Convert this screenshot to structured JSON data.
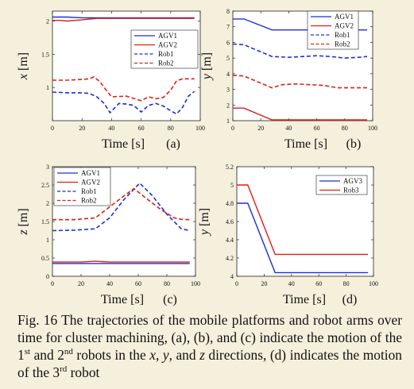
{
  "colors": {
    "blue": "#1a2fd6",
    "red": "#e01e12",
    "background": "#f5f0dc"
  },
  "caption": {
    "prefix": "Fig. 16 The trajectories of the mobile platforms and robot arms over time for cluster machining, (a), (b), and (c) indicate the motion of the 1",
    "sup1": "st",
    "mid1": " and 2",
    "sup2": "nd",
    "mid2": " robots in the ",
    "var_x": "x",
    "sep1": ", ",
    "var_y": "y",
    "sep2": ", and ",
    "var_z": "z",
    "mid3": " directions, (d) indicates the motion of the 3",
    "sup3": "rd",
    "suffix": " robot"
  },
  "chart_data": [
    {
      "panel": "(a)",
      "type": "line",
      "xlabel": "Time [s]",
      "ylabel": "x [m]",
      "xlim": [
        0,
        100
      ],
      "ylim": [
        0.5,
        2.15
      ],
      "xticks": [
        0,
        20,
        40,
        60,
        80,
        100
      ],
      "yticks": [
        1,
        1.5,
        2
      ],
      "ytick_labels": [
        "1",
        "1.5",
        "2"
      ],
      "legend_position": "upper-right",
      "series": [
        {
          "name": "AGV1",
          "color": "blue",
          "style": "solid",
          "x": [
            0,
            10,
            20,
            30,
            40,
            50,
            60,
            70,
            80,
            90,
            96
          ],
          "y": [
            2.06,
            2.06,
            2.05,
            2.05,
            2.05,
            2.05,
            2.05,
            2.05,
            2.05,
            2.05,
            2.05
          ]
        },
        {
          "name": "AGV2",
          "color": "red",
          "style": "solid",
          "x": [
            0,
            5,
            10,
            15,
            20,
            25,
            30,
            40,
            50,
            60,
            70,
            80,
            90,
            96
          ],
          "y": [
            2.01,
            2.01,
            2.0,
            2.01,
            2.02,
            2.03,
            2.04,
            2.04,
            2.04,
            2.04,
            2.04,
            2.04,
            2.04,
            2.04
          ]
        },
        {
          "name": "Rob1",
          "color": "blue",
          "style": "dashed",
          "x": [
            0,
            10,
            20,
            25,
            30,
            35,
            39,
            45,
            50,
            55,
            60,
            65,
            70,
            75,
            80,
            84,
            88,
            92,
            96
          ],
          "y": [
            0.93,
            0.92,
            0.92,
            0.91,
            0.86,
            0.76,
            0.62,
            0.76,
            0.75,
            0.73,
            0.63,
            0.73,
            0.76,
            0.72,
            0.65,
            0.6,
            0.7,
            0.87,
            0.94
          ]
        },
        {
          "name": "Rob2",
          "color": "red",
          "style": "dashed",
          "x": [
            0,
            10,
            20,
            25,
            28,
            32,
            36,
            40,
            50,
            60,
            65,
            70,
            75,
            80,
            84,
            88,
            92,
            96
          ],
          "y": [
            1.11,
            1.11,
            1.12,
            1.13,
            1.16,
            1.09,
            0.97,
            0.86,
            0.87,
            0.8,
            0.86,
            0.83,
            0.85,
            0.96,
            1.1,
            1.13,
            1.13,
            1.13
          ]
        }
      ]
    },
    {
      "panel": "(b)",
      "type": "line",
      "xlabel": "Time [s]",
      "ylabel": "y [m]",
      "xlim": [
        0,
        100
      ],
      "ylim": [
        1,
        8
      ],
      "xticks": [
        0,
        20,
        40,
        60,
        80,
        100
      ],
      "yticks": [
        1,
        2,
        3,
        4,
        5,
        6,
        7,
        8
      ],
      "ytick_labels": [
        "1",
        "2",
        "3",
        "4",
        "5",
        "6",
        "7",
        "8"
      ],
      "legend_position": "upper-right",
      "series": [
        {
          "name": "AGV1",
          "color": "blue",
          "style": "solid",
          "x": [
            0,
            8,
            28,
            96
          ],
          "y": [
            7.5,
            7.5,
            6.8,
            6.8
          ]
        },
        {
          "name": "AGV2",
          "color": "red",
          "style": "solid",
          "x": [
            0,
            8,
            28,
            96
          ],
          "y": [
            1.8,
            1.8,
            1.05,
            1.05
          ]
        },
        {
          "name": "Rob1",
          "color": "blue",
          "style": "dashed",
          "x": [
            0,
            8,
            20,
            28,
            40,
            50,
            60,
            70,
            80,
            90,
            96
          ],
          "y": [
            5.9,
            5.85,
            5.4,
            5.1,
            5.05,
            5.1,
            5.15,
            5.1,
            5.0,
            5.05,
            5.1
          ]
        },
        {
          "name": "Rob2",
          "color": "red",
          "style": "dashed",
          "x": [
            0,
            8,
            20,
            28,
            35,
            45,
            55,
            65,
            75,
            85,
            96
          ],
          "y": [
            3.9,
            3.85,
            3.4,
            3.1,
            3.3,
            3.35,
            3.3,
            3.25,
            3.1,
            3.1,
            3.1
          ]
        }
      ]
    },
    {
      "panel": "(c)",
      "type": "line",
      "xlabel": "Time [s]",
      "ylabel": "z [m]",
      "xlim": [
        0,
        100
      ],
      "ylim": [
        0,
        3
      ],
      "xticks": [
        0,
        20,
        40,
        60,
        80,
        100
      ],
      "yticks": [
        0,
        0.5,
        1,
        1.5,
        2,
        2.5,
        3
      ],
      "ytick_labels": [
        "0",
        "0.5",
        "1",
        "1.5",
        "2",
        "2.5",
        "3"
      ],
      "legend_position": "upper-left",
      "series": [
        {
          "name": "AGV1",
          "color": "blue",
          "style": "solid",
          "x": [
            0,
            96
          ],
          "y": [
            0.35,
            0.35
          ]
        },
        {
          "name": "AGV2",
          "color": "red",
          "style": "solid",
          "x": [
            0,
            20,
            30,
            40,
            96
          ],
          "y": [
            0.39,
            0.39,
            0.41,
            0.39,
            0.39
          ]
        },
        {
          "name": "Rob1",
          "color": "blue",
          "style": "dashed",
          "x": [
            0,
            15,
            30,
            40,
            50,
            61,
            70,
            80,
            90,
            96
          ],
          "y": [
            1.25,
            1.26,
            1.3,
            1.6,
            2.1,
            2.55,
            2.2,
            1.7,
            1.3,
            1.25
          ]
        },
        {
          "name": "Rob2",
          "color": "red",
          "style": "dashed",
          "x": [
            0,
            15,
            30,
            40,
            50,
            57,
            65,
            75,
            85,
            90,
            96
          ],
          "y": [
            1.55,
            1.55,
            1.6,
            1.9,
            2.2,
            2.4,
            2.15,
            1.85,
            1.6,
            1.56,
            1.55
          ]
        }
      ]
    },
    {
      "panel": "(d)",
      "type": "line",
      "xlabel": "Time [s]",
      "ylabel": "y [m]",
      "xlim": [
        0,
        100
      ],
      "ylim": [
        4,
        5.2
      ],
      "xticks": [
        0,
        20,
        40,
        60,
        80,
        100
      ],
      "yticks": [
        4,
        4.2,
        4.4,
        4.6,
        4.8,
        5,
        5.2
      ],
      "ytick_labels": [
        "4",
        "4.2",
        "4.4",
        "4.6",
        "4.8",
        "5",
        "5.2"
      ],
      "legend_position": "upper-right",
      "series": [
        {
          "name": "AGV3",
          "color": "blue",
          "style": "solid",
          "x": [
            0,
            8,
            28,
            96
          ],
          "y": [
            4.8,
            4.8,
            4.04,
            4.04
          ]
        },
        {
          "name": "Rob3",
          "color": "red",
          "style": "solid",
          "x": [
            0,
            8,
            28,
            96
          ],
          "y": [
            5.0,
            5.0,
            4.24,
            4.24
          ]
        }
      ]
    }
  ]
}
